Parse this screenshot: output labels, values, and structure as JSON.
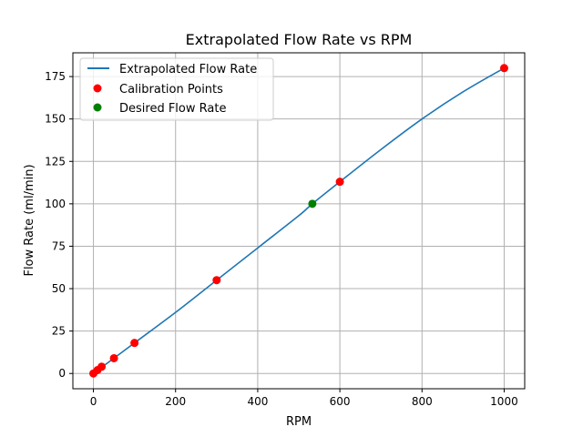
{
  "chart_data": {
    "type": "line",
    "title": "Extrapolated Flow Rate vs RPM",
    "xlabel": "RPM",
    "ylabel": "Flow Rate (ml/min)",
    "xlim": [
      -50,
      1050
    ],
    "ylim": [
      -9,
      189
    ],
    "xticks": [
      0,
      200,
      400,
      600,
      800,
      1000
    ],
    "yticks": [
      0,
      25,
      50,
      75,
      100,
      125,
      150,
      175
    ],
    "grid": true,
    "legend_position": "top-left",
    "colors": {
      "line": "#1f77b4",
      "calibration": "#ff0000",
      "desired": "#008000",
      "grid": "#b0b0b0"
    },
    "series": [
      {
        "name": "Extrapolated Flow Rate",
        "kind": "line",
        "x": [
          0,
          100,
          200,
          300,
          400,
          500,
          533,
          600,
          700,
          800,
          900,
          1000
        ],
        "y": [
          0,
          18,
          36,
          55,
          74,
          93,
          100,
          113,
          132,
          150,
          166,
          180
        ]
      },
      {
        "name": "Calibration Points",
        "kind": "scatter",
        "x": [
          0,
          10,
          20,
          50,
          100,
          300,
          600,
          1000
        ],
        "y": [
          0,
          2,
          4,
          9,
          18,
          55,
          113,
          180
        ]
      },
      {
        "name": "Desired Flow Rate",
        "kind": "scatter",
        "x": [
          533
        ],
        "y": [
          100
        ]
      }
    ]
  }
}
